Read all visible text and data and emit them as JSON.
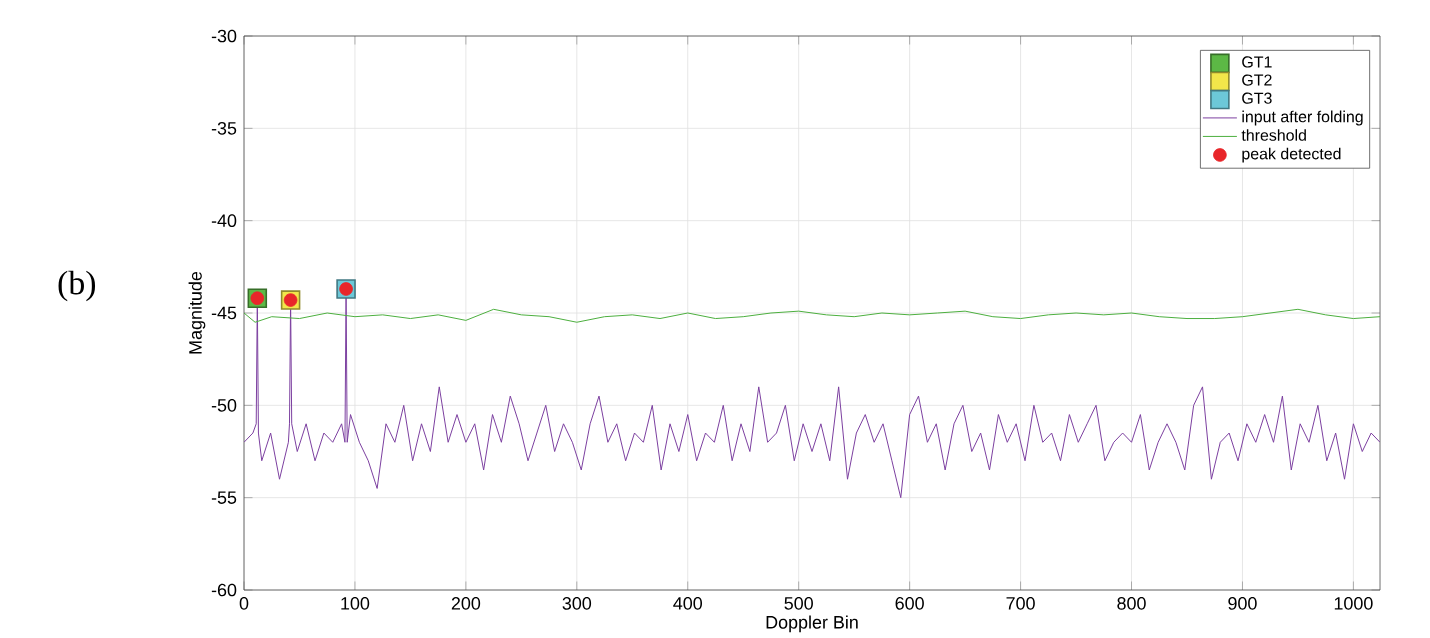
{
  "chart_data": {
    "type": "line",
    "xlabel": "Doppler Bin",
    "ylabel": "Magnitude",
    "xlim": [
      0,
      1024
    ],
    "ylim": [
      -60,
      -30
    ],
    "xticks": [
      0,
      100,
      200,
      300,
      400,
      500,
      600,
      700,
      800,
      900,
      1000
    ],
    "yticks": [
      -60,
      -55,
      -50,
      -45,
      -40,
      -35,
      -30
    ],
    "grid": true,
    "legend": "top right",
    "annotations": [
      "(b)"
    ],
    "series": [
      {
        "name": "GT1",
        "type": "scatter",
        "marker": "square",
        "color": "#5cb845",
        "x": [
          12
        ],
        "values": [
          -44.2
        ]
      },
      {
        "name": "GT2",
        "type": "scatter",
        "marker": "square",
        "color": "#f2e64a",
        "x": [
          42
        ],
        "values": [
          -44.3
        ]
      },
      {
        "name": "GT3",
        "type": "scatter",
        "marker": "square",
        "color": "#6cc8d8",
        "x": [
          92
        ],
        "values": [
          -43.7
        ]
      },
      {
        "name": "input after folding",
        "marker": "none",
        "color": "#7b3fa0",
        "x": [
          0,
          8,
          11,
          12,
          13,
          16,
          24,
          32,
          40,
          41,
          42,
          43,
          48,
          56,
          64,
          72,
          80,
          88,
          91,
          92,
          93,
          96,
          104,
          112,
          120,
          128,
          136,
          144,
          152,
          160,
          168,
          176,
          184,
          192,
          200,
          208,
          216,
          224,
          232,
          240,
          248,
          256,
          264,
          272,
          280,
          288,
          296,
          304,
          312,
          320,
          328,
          336,
          344,
          352,
          360,
          368,
          376,
          384,
          392,
          400,
          408,
          416,
          424,
          432,
          440,
          448,
          456,
          464,
          472,
          480,
          488,
          496,
          504,
          512,
          520,
          528,
          536,
          544,
          552,
          560,
          568,
          576,
          584,
          592,
          600,
          608,
          616,
          624,
          632,
          640,
          648,
          656,
          664,
          672,
          680,
          688,
          696,
          704,
          712,
          720,
          728,
          736,
          744,
          752,
          760,
          768,
          776,
          784,
          792,
          800,
          808,
          816,
          824,
          832,
          840,
          848,
          856,
          864,
          872,
          880,
          888,
          896,
          904,
          912,
          920,
          928,
          936,
          944,
          952,
          960,
          968,
          976,
          984,
          992,
          1000,
          1008,
          1016,
          1024
        ],
        "values": [
          -52,
          -51.5,
          -51,
          -44.2,
          -51.5,
          -53,
          -51.5,
          -54,
          -52,
          -51,
          -44.3,
          -51,
          -52.5,
          -51,
          -53,
          -51.5,
          -52,
          -51,
          -52,
          -43.7,
          -52,
          -50.5,
          -52,
          -53,
          -54.5,
          -51,
          -52,
          -50,
          -53,
          -51,
          -52.5,
          -49,
          -52,
          -50.5,
          -52,
          -51,
          -53.5,
          -50.5,
          -52,
          -49.5,
          -51,
          -53,
          -51.5,
          -50,
          -52.5,
          -51,
          -52,
          -53.5,
          -51,
          -49.5,
          -52,
          -51,
          -53,
          -51.5,
          -52,
          -50,
          -53.5,
          -51,
          -52.5,
          -50.5,
          -53,
          -51.5,
          -52,
          -50,
          -53,
          -51,
          -52.5,
          -49,
          -52,
          -51.5,
          -50,
          -53,
          -51,
          -52.5,
          -51,
          -53,
          -49,
          -54,
          -51.5,
          -50.5,
          -52,
          -51,
          -53,
          -55,
          -50.5,
          -49.5,
          -52,
          -51,
          -53.5,
          -51,
          -50,
          -52.5,
          -51.5,
          -53.5,
          -50.5,
          -52,
          -51,
          -53,
          -50,
          -52,
          -51.5,
          -53,
          -50.5,
          -52,
          -51,
          -50,
          -53,
          -52,
          -51.5,
          -52,
          -50.5,
          -53.5,
          -52,
          -51,
          -52,
          -53.5,
          -50,
          -49,
          -54,
          -52,
          -51.5,
          -53,
          -51,
          -52,
          -50.5,
          -52,
          -49.5,
          -53.5,
          -51,
          -52,
          -50,
          -53,
          -51.5,
          -54,
          -51,
          -52.5,
          -51.5,
          -52
        ]
      },
      {
        "name": "threshold",
        "marker": "none",
        "color": "#4caf3e",
        "x": [
          0,
          10,
          25,
          50,
          75,
          100,
          125,
          150,
          175,
          200,
          225,
          250,
          275,
          300,
          325,
          350,
          375,
          400,
          425,
          450,
          475,
          500,
          525,
          550,
          575,
          600,
          625,
          650,
          675,
          700,
          725,
          750,
          775,
          800,
          825,
          850,
          875,
          900,
          925,
          950,
          975,
          1000,
          1024
        ],
        "values": [
          -45,
          -45.5,
          -45.2,
          -45.3,
          -45,
          -45.2,
          -45.1,
          -45.3,
          -45.1,
          -45.4,
          -44.8,
          -45.1,
          -45.2,
          -45.5,
          -45.2,
          -45.1,
          -45.3,
          -45,
          -45.3,
          -45.2,
          -45,
          -44.9,
          -45.1,
          -45.2,
          -45,
          -45.1,
          -45,
          -44.9,
          -45.2,
          -45.3,
          -45.1,
          -45,
          -45.1,
          -45,
          -45.2,
          -45.3,
          -45.3,
          -45.2,
          -45,
          -44.8,
          -45.1,
          -45.3,
          -45.2
        ]
      },
      {
        "name": "peak detected",
        "type": "scatter",
        "marker": "circle",
        "color": "#e8262a",
        "x": [
          12,
          42,
          92
        ],
        "values": [
          -44.2,
          -44.3,
          -43.7
        ]
      }
    ]
  }
}
